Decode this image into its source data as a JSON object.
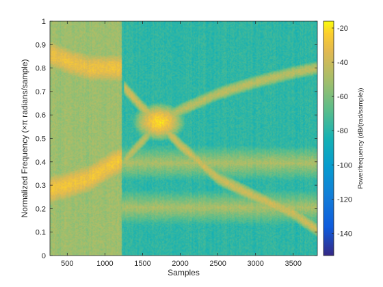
{
  "chart_data": {
    "type": "heatmap",
    "title": "",
    "xlabel": "Samples",
    "ylabel": "Normalized Frequency (×π radians/sample)",
    "xlim": [
      270,
      3820
    ],
    "ylim": [
      0,
      1
    ],
    "x_ticks": [
      500,
      1000,
      1500,
      2000,
      2500,
      3000,
      3500
    ],
    "y_ticks": [
      0,
      0.1,
      0.2,
      0.3,
      0.4,
      0.5,
      0.6,
      0.7,
      0.8,
      0.9,
      1
    ],
    "colormap": "parula",
    "colorbar": {
      "label": "Power/frequency (dB/(rad/sample))",
      "range": [
        -153,
        -16
      ],
      "ticks": [
        -140,
        -120,
        -100,
        -80,
        -60,
        -40,
        -20
      ]
    },
    "grid": false,
    "features": {
      "background_db": {
        "before_1230": -52,
        "after_1230": -78
      },
      "ridges": [
        {
          "name": "",
          "points": [
            [
              270,
              0.86
            ],
            [
              500,
              0.83
            ],
            [
              800,
              0.8
            ],
            [
              1230,
              0.8
            ]
          ],
          "peak_db": -30
        },
        {
          "name": "",
          "points": [
            [
              270,
              0.28
            ],
            [
              500,
              0.3
            ],
            [
              800,
              0.33
            ],
            [
              1100,
              0.39
            ],
            [
              1230,
              0.41
            ]
          ],
          "peak_db": -28
        },
        {
          "name": "",
          "points": [
            [
              1250,
              0.4
            ],
            [
              1500,
              0.49
            ],
            [
              1720,
              0.57
            ],
            [
              2000,
              0.62
            ],
            [
              2500,
              0.69
            ],
            [
              3000,
              0.74
            ],
            [
              3500,
              0.78
            ],
            [
              3820,
              0.8
            ]
          ],
          "peak_db": -45
        },
        {
          "name": "",
          "points": [
            [
              1250,
              0.72
            ],
            [
              1500,
              0.63
            ],
            [
              1720,
              0.57
            ],
            [
              2000,
              0.47
            ],
            [
              2500,
              0.33
            ],
            [
              3000,
              0.25
            ],
            [
              3500,
              0.18
            ],
            [
              3820,
              0.11
            ]
          ],
          "peak_db": -40
        }
      ],
      "hotspot": {
        "x": 1720,
        "y": 0.57,
        "peak_db": -22
      },
      "band_edge_db": -48,
      "bands": [
        [
          0.2,
          0.4
        ]
      ]
    }
  }
}
